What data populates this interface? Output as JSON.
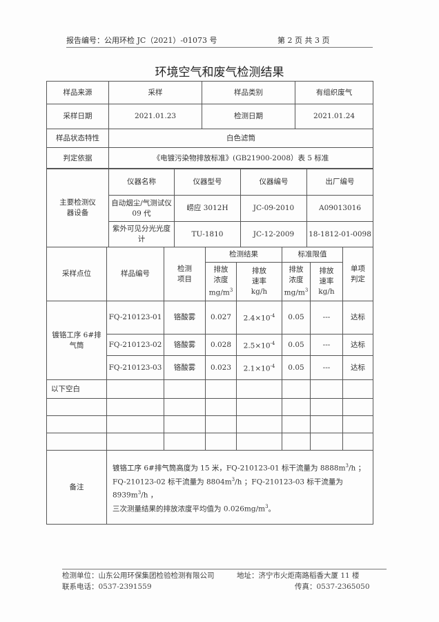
{
  "header": {
    "report_no": "报告编号：公用环检 JC（2021）-01073 号",
    "page": "第 2 页 共 3 页"
  },
  "title": "环境空气和废气检测结果",
  "info": {
    "source_label": "样品来源",
    "source": "采样",
    "category_label": "样品类别",
    "category": "有组织废气",
    "sample_date_label": "采样日期",
    "sample_date": "2021.01.23",
    "test_date_label": "检测日期",
    "test_date": "2021.01.24",
    "state_label": "样品状态特性",
    "state": "白色滤筒",
    "basis_label": "判定依据",
    "basis": "《电镀污染物排放标准》(GB21900-2008）表 5 标准"
  },
  "instruments": {
    "label": "主要检测仪器设备",
    "headers": [
      "仪器名称",
      "仪器型号",
      "仪器编号",
      "出厂编号"
    ],
    "rows": [
      [
        "自动烟尘/气测试仪 09 代",
        "崂应 3012H",
        "JC-09-2010",
        "A09013016"
      ],
      [
        "紫外可见分光光度计",
        "TU-1810",
        "JC-12-2009",
        "18-1812-01-0098"
      ]
    ]
  },
  "results": {
    "h_point": "采样点位",
    "h_sample": "样品编号",
    "h_item": "检测项目",
    "h_result": "检测结果",
    "h_limit": "标准限值",
    "h_judge": "单项判定",
    "h_conc": "排放浓度",
    "u_conc": "mg/m",
    "h_rate": "排放速率",
    "u_rate": "kg/h",
    "sup": "3",
    "point": "镀铬工序 6#排气筒",
    "rows": [
      {
        "id": "FQ-210123-01",
        "item": "铬酸雾",
        "conc": "0.027",
        "rate": "2.4×10",
        "exp": "-4",
        "lconc": "0.05",
        "lrate": "---",
        "judge": "达标"
      },
      {
        "id": "FQ-210123-02",
        "item": "铬酸雾",
        "conc": "0.028",
        "rate": "2.5×10",
        "exp": "-4",
        "lconc": "0.05",
        "lrate": "---",
        "judge": "达标"
      },
      {
        "id": "FQ-210123-03",
        "item": "铬酸雾",
        "conc": "0.023",
        "rate": "2.1×10",
        "exp": "-4",
        "lconc": "0.05",
        "lrate": "---",
        "judge": "达标"
      }
    ],
    "blank": "以下空白"
  },
  "remarks": {
    "label": "备注",
    "l1a": "镀铬工序  6#排气筒高度为  15  米，FQ-210123-01  标干流量为  8888m",
    "l1b": "/h  ；",
    "l2a": "FQ-210123-02 标干流量为 8804m",
    "l2b": "/h ；FQ-210123-03 标干流量为 8939m",
    "l2c": "/h ，",
    "l3a": "三次测量结果的排放浓度平均值为 0.026mg/m",
    "l3b": "。",
    "sup": "3"
  },
  "footer": {
    "unit": "检测单位：山东公用环保集团检验检测有限公司",
    "address": "地址：济宁市火炬南路稻香大厦 11 楼",
    "phone": "联系电话：0537-2391559",
    "fax": "传真：0537-2365050"
  }
}
